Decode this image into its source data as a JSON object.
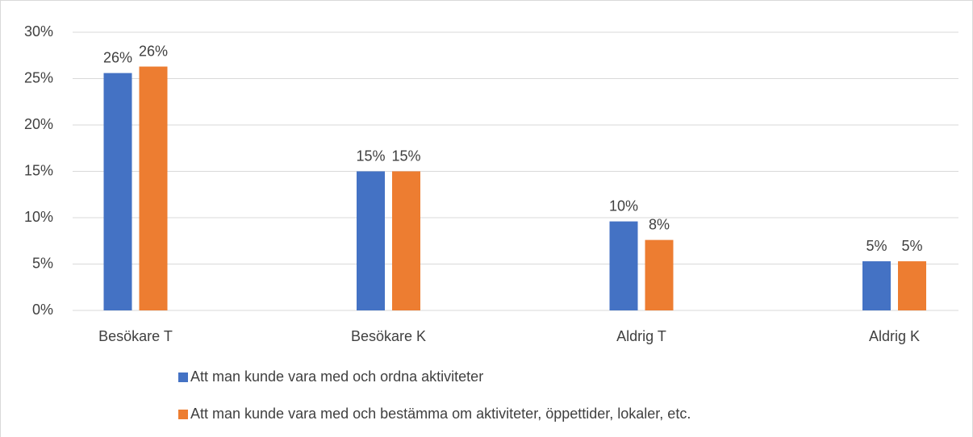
{
  "chart_data": {
    "type": "bar",
    "categories": [
      "Besökare T",
      "Besökare K",
      "Aldrig T",
      "Aldrig K"
    ],
    "series": [
      {
        "name": "Att man kunde vara med och ordna aktiviteter",
        "color": "#4472c4",
        "values": [
          25.6,
          15,
          9.6,
          5.3
        ],
        "value_labels": [
          "26%",
          "15%",
          "10%",
          "5%"
        ]
      },
      {
        "name": "Att man kunde vara med och bestämma om aktiviteter, öppettider, lokaler, etc.",
        "color": "#ed7d31",
        "values": [
          26.3,
          15,
          7.6,
          5.3
        ],
        "value_labels": [
          "26%",
          "15%",
          "8%",
          "5%"
        ]
      }
    ],
    "ylim": [
      0,
      30
    ],
    "yticks": [
      {
        "value": 0,
        "label": "0%"
      },
      {
        "value": 5,
        "label": "5%"
      },
      {
        "value": 10,
        "label": "10%"
      },
      {
        "value": 15,
        "label": "15%"
      },
      {
        "value": 20,
        "label": "20%"
      },
      {
        "value": 25,
        "label": "25%"
      },
      {
        "value": 30,
        "label": "30%"
      }
    ],
    "grid": true,
    "legend": "bottom"
  }
}
